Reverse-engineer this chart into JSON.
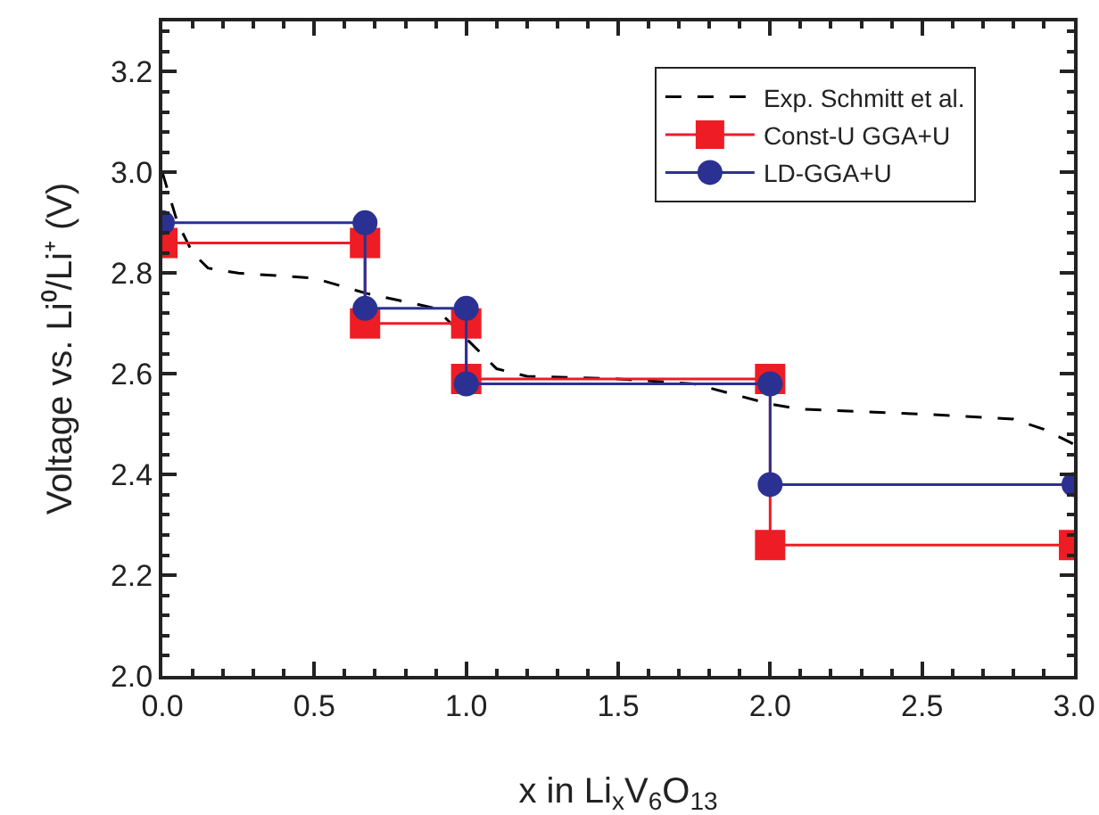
{
  "chart_data": {
    "type": "line",
    "xlabel": "x in Li$_{x}$V$_{6}$O$_{13}$",
    "ylabel": "Voltage vs. Li⁰/Li⁺ (V)",
    "xlim": [
      0,
      3.0
    ],
    "xticks": [
      {
        "value": 0,
        "label": "0.0"
      },
      0.5,
      {
        "value": 1,
        "label": "1.0"
      },
      1.5,
      {
        "value": 2,
        "label": "2.0"
      },
      2.5,
      {
        "value": 3,
        "label": "3.0"
      }
    ],
    "ylim": [
      2.0,
      3.3
    ],
    "yticks": [
      {
        "value": 2,
        "label": "2.0"
      },
      2.2,
      2.4,
      2.6,
      2.8,
      {
        "value": 3,
        "label": "3.0"
      },
      3.2
    ],
    "grid": false,
    "legend": "top right",
    "series": [
      {
        "name": "Exp. Schmitt et al.",
        "color": "#000000",
        "line_style": "dashed",
        "marker": "none",
        "x": [
          0,
          0.05,
          0.1,
          0.15,
          0.25,
          0.5,
          0.67,
          0.9,
          1.0,
          1.1,
          1.2,
          1.5,
          1.75,
          2.0,
          2.1,
          2.5,
          2.8,
          2.9,
          3.0
        ],
        "values": [
          3.0,
          2.9,
          2.84,
          2.81,
          2.8,
          2.79,
          2.76,
          2.73,
          2.67,
          2.61,
          2.595,
          2.59,
          2.58,
          2.54,
          2.53,
          2.52,
          2.51,
          2.49,
          2.46
        ]
      },
      {
        "name": "Const-U GGA+U",
        "color": "#ee1c25",
        "line_style": "solid",
        "marker": "square",
        "x": [
          0,
          0.667,
          0.667,
          1,
          1,
          2,
          2,
          3
        ],
        "values": [
          2.86,
          2.86,
          2.7,
          2.7,
          2.59,
          2.59,
          2.26,
          2.26
        ]
      },
      {
        "name": "LD-GGA+U",
        "color": "#2b3192",
        "line_style": "solid",
        "marker": "circle",
        "x": [
          0,
          0.667,
          0.667,
          1,
          1,
          2,
          2,
          3
        ],
        "values": [
          2.9,
          2.9,
          2.73,
          2.73,
          2.58,
          2.58,
          2.38,
          2.38
        ]
      }
    ]
  }
}
